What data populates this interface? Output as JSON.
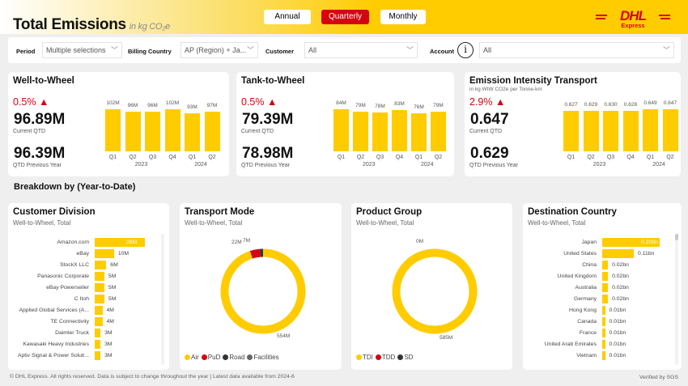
{
  "header": {
    "title": "Total Emissions",
    "unit": "in kg CO₂e",
    "toggle": [
      "Annual",
      "Quarterly",
      "Monthly"
    ],
    "active": "Quarterly",
    "logo_text": "DHL",
    "logo_sub": "Express"
  },
  "filters": {
    "period_label": "Period",
    "period_value": "Multiple selections",
    "country_label": "Billing Country",
    "country_value": "AP (Region) + Ja...",
    "customer_label": "Customer",
    "customer_value": "All",
    "account_label": "Account",
    "account_value": "All"
  },
  "kpis": [
    {
      "title": "Well-to-Wheel",
      "subtitle": "",
      "delta": "0.5% ▲",
      "current": "96.89M",
      "current_label": "Current QTD",
      "previous": "96.39M",
      "previous_label": "QTD Previous Year",
      "quarters": [
        "Q1",
        "Q2",
        "Q3",
        "Q4",
        "Q1",
        "Q2"
      ],
      "years": [
        "2023",
        "2024"
      ],
      "values": [
        102,
        96,
        96,
        102,
        93,
        97
      ],
      "labels": [
        "102M",
        "96M",
        "96M",
        "102M",
        "93M",
        "97M"
      ]
    },
    {
      "title": "Tank-to-Wheel",
      "subtitle": "",
      "delta": "0.5% ▲",
      "current": "79.39M",
      "current_label": "Current QTD",
      "previous": "78.98M",
      "previous_label": "QTD Previous Year",
      "quarters": [
        "Q1",
        "Q2",
        "Q3",
        "Q4",
        "Q1",
        "Q2"
      ],
      "years": [
        "2023",
        "2024"
      ],
      "values": [
        84,
        79,
        78,
        83,
        76,
        79
      ],
      "labels": [
        "84M",
        "79M",
        "78M",
        "83M",
        "76M",
        "79M"
      ]
    },
    {
      "title": "Emission Intensity Transport",
      "subtitle": "in kg WtW CO2e per Tonne-km",
      "delta": "2.9% ▲",
      "current": "0.647",
      "current_label": "Current QTD",
      "previous": "0.629",
      "previous_label": "QTD Previous Year",
      "quarters": [
        "Q1",
        "Q2",
        "Q3",
        "Q4",
        "Q1",
        "Q2"
      ],
      "years": [
        "2023",
        "2024"
      ],
      "values": [
        0.627,
        0.629,
        0.63,
        0.628,
        0.649,
        0.647
      ],
      "labels": [
        "0.627",
        "0.629",
        "0.630",
        "0.628",
        "0.649",
        "0.647"
      ]
    }
  ],
  "breakdown_title": "Breakdown by (Year-to-Date)",
  "customer_division": {
    "title": "Customer Division",
    "subtitle": "Well-to-Wheel, Total",
    "items": [
      {
        "name": "Amazon.com",
        "value": 26,
        "label": "26M"
      },
      {
        "name": "eBay",
        "value": 10,
        "label": "10M"
      },
      {
        "name": "StockX LLC",
        "value": 6,
        "label": "6M"
      },
      {
        "name": "Panasonic Corporate",
        "value": 5,
        "label": "5M"
      },
      {
        "name": "eBay Powerseller",
        "value": 5,
        "label": "5M"
      },
      {
        "name": "C Itoh",
        "value": 5,
        "label": "5M"
      },
      {
        "name": "Applied Global Services (A...",
        "value": 4,
        "label": "4M"
      },
      {
        "name": "TE Connectivity",
        "value": 4,
        "label": "4M"
      },
      {
        "name": "Daimler Truck",
        "value": 3,
        "label": "3M"
      },
      {
        "name": "Kawasaki Heavy Industries",
        "value": 3,
        "label": "3M"
      },
      {
        "name": "Aptiv Signal & Power Soluti...",
        "value": 3,
        "label": "3M"
      }
    ]
  },
  "transport_mode": {
    "title": "Transport Mode",
    "subtitle": "Well-to-Wheel, Total",
    "slices": [
      {
        "name": "Air",
        "value": 554,
        "label": "554M",
        "color": "#ffcc00"
      },
      {
        "name": "PuD",
        "value": 22,
        "label": "22M",
        "color": "#d40511"
      },
      {
        "name": "Road",
        "value": 7,
        "label": "7M",
        "color": "#333333"
      },
      {
        "name": "Facilities",
        "value": 1,
        "label": "",
        "color": "#666666"
      }
    ]
  },
  "product_group": {
    "title": "Product Group",
    "subtitle": "Well-to-Wheel, Total",
    "slices": [
      {
        "name": "TDI",
        "value": 585,
        "label": "585M",
        "color": "#ffcc00"
      },
      {
        "name": "TDD",
        "value": 0,
        "label": "0M",
        "color": "#d40511"
      },
      {
        "name": "SD",
        "value": 0,
        "label": "",
        "color": "#333333"
      }
    ]
  },
  "destination_country": {
    "title": "Destination Country",
    "subtitle": "Well-to-Wheel, Total",
    "items": [
      {
        "name": "Japan",
        "value": 0.2,
        "label": "0.20bn"
      },
      {
        "name": "United States",
        "value": 0.11,
        "label": "0.11bn"
      },
      {
        "name": "China",
        "value": 0.02,
        "label": "0.02bn"
      },
      {
        "name": "United Kingdom",
        "value": 0.02,
        "label": "0.02bn"
      },
      {
        "name": "Australia",
        "value": 0.02,
        "label": "0.02bn"
      },
      {
        "name": "Germany",
        "value": 0.02,
        "label": "0.02bn"
      },
      {
        "name": "Hong Kong",
        "value": 0.01,
        "label": "0.01bn"
      },
      {
        "name": "Canada",
        "value": 0.01,
        "label": "0.01bn"
      },
      {
        "name": "France",
        "value": 0.01,
        "label": "0.01bn"
      },
      {
        "name": "United Arab Emirates",
        "value": 0.01,
        "label": "0.01bn"
      },
      {
        "name": "Vietnam",
        "value": 0.01,
        "label": "0.01bn"
      }
    ]
  },
  "footer": {
    "text": "© DHL Express. All rights reserved. Data is subject to change throughout the year | Latest data available from 2024-6",
    "verified": "Verified by SGS"
  },
  "colors": {
    "accent": "#ffcc00",
    "brand_red": "#d40511"
  }
}
